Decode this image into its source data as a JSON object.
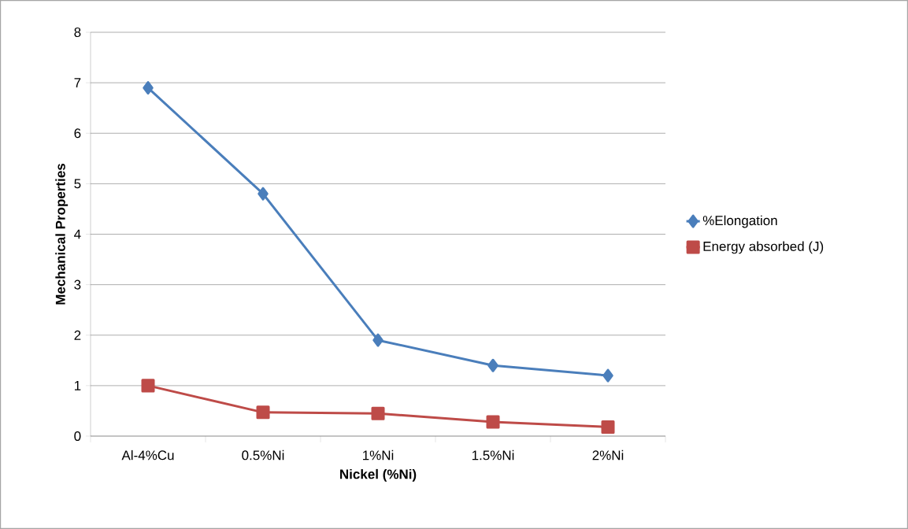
{
  "chart_data": {
    "type": "line",
    "xlabel": "Nickel (%Ni)",
    "ylabel": "Mechanical Properties",
    "categories": [
      "Al-4%Cu",
      "0.5%Ni",
      "1%Ni",
      "1.5%Ni",
      "2%Ni"
    ],
    "series": [
      {
        "name": "%Elongation",
        "color": "#4a7ebb",
        "marker": "diamond",
        "values": [
          6.9,
          4.8,
          1.9,
          1.4,
          1.2
        ]
      },
      {
        "name": "Energy absorbed (J)",
        "color": "#be4b48",
        "marker": "square",
        "values": [
          1.0,
          0.47,
          0.45,
          0.28,
          0.18
        ]
      }
    ],
    "ylim": [
      0,
      8
    ],
    "yticks": [
      0,
      1,
      2,
      3,
      4,
      5,
      6,
      7,
      8
    ],
    "grid": "y",
    "legend": "right",
    "line_style": "solid"
  }
}
